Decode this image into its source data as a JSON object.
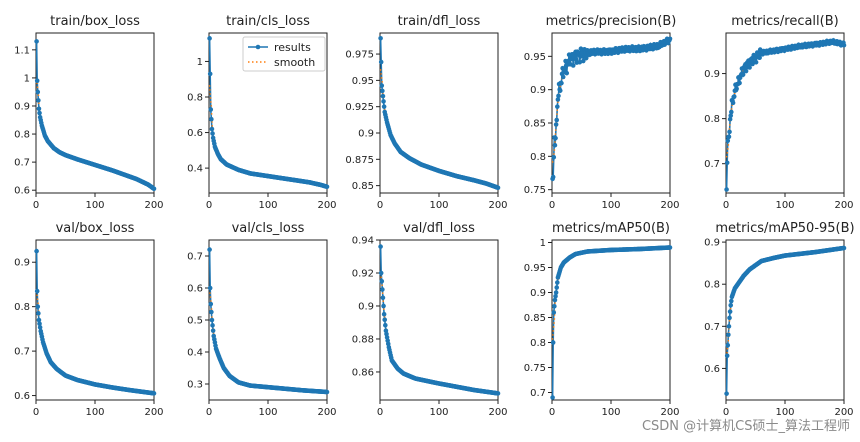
{
  "watermark": "CSDN @计算机CS硕士_算法工程师",
  "colors": {
    "line": "#1f77b4",
    "smooth": "#ff7f0e"
  },
  "legend": {
    "results": "results",
    "smooth": "smooth"
  },
  "chart_data": [
    {
      "type": "line",
      "title": "train/box_loss",
      "xlim": [
        0,
        200
      ],
      "ylim": [
        0.59,
        1.16
      ],
      "xticks": [
        0,
        100,
        200
      ],
      "yticks": [
        0.6,
        0.7,
        0.8,
        0.9,
        1.0,
        1.1
      ],
      "y_anchors": [
        [
          1,
          1.13
        ],
        [
          2,
          0.99
        ],
        [
          3,
          0.95
        ],
        [
          4,
          0.92
        ],
        [
          5,
          0.89
        ],
        [
          7,
          0.86
        ],
        [
          10,
          0.83
        ],
        [
          15,
          0.795
        ],
        [
          20,
          0.775
        ],
        [
          30,
          0.75
        ],
        [
          40,
          0.735
        ],
        [
          50,
          0.725
        ],
        [
          70,
          0.71
        ],
        [
          100,
          0.69
        ],
        [
          130,
          0.67
        ],
        [
          150,
          0.655
        ],
        [
          170,
          0.64
        ],
        [
          190,
          0.62
        ],
        [
          200,
          0.605
        ]
      ]
    },
    {
      "type": "line",
      "title": "train/cls_loss",
      "legend": true,
      "xlim": [
        0,
        200
      ],
      "ylim": [
        0.26,
        1.16
      ],
      "xticks": [
        0,
        100,
        200
      ],
      "yticks": [
        0.4,
        0.6,
        0.8,
        1.0
      ],
      "y_anchors": [
        [
          1,
          1.13
        ],
        [
          2,
          0.93
        ],
        [
          3,
          0.73
        ],
        [
          5,
          0.62
        ],
        [
          7,
          0.57
        ],
        [
          10,
          0.52
        ],
        [
          15,
          0.48
        ],
        [
          20,
          0.45
        ],
        [
          30,
          0.42
        ],
        [
          40,
          0.405
        ],
        [
          50,
          0.39
        ],
        [
          70,
          0.37
        ],
        [
          100,
          0.355
        ],
        [
          130,
          0.34
        ],
        [
          150,
          0.33
        ],
        [
          170,
          0.32
        ],
        [
          190,
          0.305
        ],
        [
          200,
          0.295
        ]
      ]
    },
    {
      "type": "line",
      "title": "train/dfl_loss",
      "xlim": [
        0,
        200
      ],
      "ylim": [
        0.843,
        0.995
      ],
      "xticks": [
        0,
        100,
        200
      ],
      "yticks": [
        0.85,
        0.875,
        0.9,
        0.925,
        0.95,
        0.975
      ],
      "y_anchors": [
        [
          1,
          0.99
        ],
        [
          3,
          0.945
        ],
        [
          5,
          0.935
        ],
        [
          8,
          0.92
        ],
        [
          12,
          0.91
        ],
        [
          18,
          0.898
        ],
        [
          25,
          0.89
        ],
        [
          35,
          0.882
        ],
        [
          50,
          0.876
        ],
        [
          70,
          0.87
        ],
        [
          100,
          0.864
        ],
        [
          130,
          0.859
        ],
        [
          160,
          0.855
        ],
        [
          180,
          0.852
        ],
        [
          200,
          0.848
        ]
      ]
    },
    {
      "type": "line",
      "title": "metrics/precision(B)",
      "xlim": [
        0,
        200
      ],
      "ylim": [
        0.745,
        0.985
      ],
      "xticks": [
        0,
        100,
        200
      ],
      "yticks": [
        0.75,
        0.8,
        0.85,
        0.9,
        0.95
      ],
      "y_anchors": [
        [
          1,
          0.755
        ],
        [
          2,
          0.77
        ],
        [
          4,
          0.83
        ],
        [
          6,
          0.82
        ],
        [
          8,
          0.86
        ],
        [
          10,
          0.89
        ],
        [
          13,
          0.9
        ],
        [
          16,
          0.915
        ],
        [
          20,
          0.93
        ],
        [
          25,
          0.935
        ],
        [
          30,
          0.945
        ],
        [
          40,
          0.95
        ],
        [
          60,
          0.955
        ],
        [
          100,
          0.958
        ],
        [
          150,
          0.962
        ],
        [
          180,
          0.965
        ],
        [
          200,
          0.975
        ]
      ],
      "jitter": 0.012
    },
    {
      "type": "line",
      "title": "metrics/recall(B)",
      "xlim": [
        0,
        200
      ],
      "ylim": [
        0.635,
        0.99
      ],
      "xticks": [
        0,
        100,
        200
      ],
      "yticks": [
        0.7,
        0.8,
        0.9
      ],
      "y_anchors": [
        [
          1,
          0.645
        ],
        [
          3,
          0.76
        ],
        [
          5,
          0.75
        ],
        [
          7,
          0.8
        ],
        [
          10,
          0.83
        ],
        [
          15,
          0.86
        ],
        [
          20,
          0.88
        ],
        [
          30,
          0.91
        ],
        [
          40,
          0.925
        ],
        [
          60,
          0.945
        ],
        [
          100,
          0.955
        ],
        [
          150,
          0.965
        ],
        [
          180,
          0.97
        ],
        [
          200,
          0.965
        ]
      ],
      "jitter": 0.012
    },
    {
      "type": "line",
      "title": "val/box_loss",
      "xlim": [
        0,
        200
      ],
      "ylim": [
        0.59,
        0.95
      ],
      "xticks": [
        0,
        100,
        200
      ],
      "yticks": [
        0.6,
        0.7,
        0.8,
        0.9
      ],
      "y_anchors": [
        [
          1,
          0.925
        ],
        [
          2,
          0.835
        ],
        [
          3,
          0.8
        ],
        [
          5,
          0.77
        ],
        [
          8,
          0.745
        ],
        [
          12,
          0.72
        ],
        [
          18,
          0.695
        ],
        [
          25,
          0.675
        ],
        [
          35,
          0.66
        ],
        [
          50,
          0.645
        ],
        [
          70,
          0.635
        ],
        [
          100,
          0.625
        ],
        [
          130,
          0.618
        ],
        [
          160,
          0.612
        ],
        [
          200,
          0.605
        ]
      ]
    },
    {
      "type": "line",
      "title": "val/cls_loss",
      "xlim": [
        0,
        200
      ],
      "ylim": [
        0.25,
        0.75
      ],
      "xticks": [
        0,
        100,
        200
      ],
      "yticks": [
        0.3,
        0.4,
        0.5,
        0.6,
        0.7
      ],
      "y_anchors": [
        [
          1,
          0.72
        ],
        [
          2,
          0.6
        ],
        [
          3,
          0.55
        ],
        [
          5,
          0.5
        ],
        [
          8,
          0.45
        ],
        [
          12,
          0.41
        ],
        [
          18,
          0.38
        ],
        [
          25,
          0.35
        ],
        [
          35,
          0.325
        ],
        [
          50,
          0.305
        ],
        [
          70,
          0.295
        ],
        [
          100,
          0.29
        ],
        [
          130,
          0.285
        ],
        [
          160,
          0.28
        ],
        [
          200,
          0.275
        ]
      ]
    },
    {
      "type": "line",
      "title": "val/dfl_loss",
      "xlim": [
        0,
        200
      ],
      "ylim": [
        0.843,
        0.94
      ],
      "xticks": [
        0,
        100,
        200
      ],
      "yticks": [
        0.86,
        0.88,
        0.9,
        0.92,
        0.94
      ],
      "y_anchors": [
        [
          1,
          0.936
        ],
        [
          2,
          0.92
        ],
        [
          4,
          0.91
        ],
        [
          7,
          0.895
        ],
        [
          10,
          0.885
        ],
        [
          15,
          0.875
        ],
        [
          20,
          0.867
        ],
        [
          30,
          0.862
        ],
        [
          40,
          0.859
        ],
        [
          60,
          0.856
        ],
        [
          100,
          0.853
        ],
        [
          130,
          0.851
        ],
        [
          160,
          0.849
        ],
        [
          200,
          0.847
        ]
      ]
    },
    {
      "type": "line",
      "title": "metrics/mAP50(B)",
      "xlim": [
        0,
        200
      ],
      "ylim": [
        0.685,
        1.005
      ],
      "xticks": [
        0,
        100,
        200
      ],
      "yticks": [
        0.7,
        0.75,
        0.8,
        0.85,
        0.9,
        0.95,
        1.0
      ],
      "y_anchors": [
        [
          1,
          0.69
        ],
        [
          2,
          0.8
        ],
        [
          3,
          0.86
        ],
        [
          5,
          0.885
        ],
        [
          7,
          0.9
        ],
        [
          10,
          0.93
        ],
        [
          15,
          0.95
        ],
        [
          20,
          0.96
        ],
        [
          30,
          0.97
        ],
        [
          40,
          0.977
        ],
        [
          60,
          0.982
        ],
        [
          100,
          0.985
        ],
        [
          150,
          0.987
        ],
        [
          200,
          0.99
        ]
      ]
    },
    {
      "type": "line",
      "title": "metrics/mAP50-95(B)",
      "xlim": [
        0,
        200
      ],
      "ylim": [
        0.525,
        0.905
      ],
      "xticks": [
        0,
        100,
        200
      ],
      "yticks": [
        0.6,
        0.7,
        0.8,
        0.9
      ],
      "y_anchors": [
        [
          1,
          0.54
        ],
        [
          2,
          0.63
        ],
        [
          4,
          0.68
        ],
        [
          6,
          0.72
        ],
        [
          8,
          0.75
        ],
        [
          10,
          0.77
        ],
        [
          15,
          0.79
        ],
        [
          20,
          0.8
        ],
        [
          30,
          0.82
        ],
        [
          40,
          0.835
        ],
        [
          60,
          0.855
        ],
        [
          80,
          0.862
        ],
        [
          100,
          0.868
        ],
        [
          150,
          0.876
        ],
        [
          200,
          0.886
        ]
      ]
    }
  ]
}
